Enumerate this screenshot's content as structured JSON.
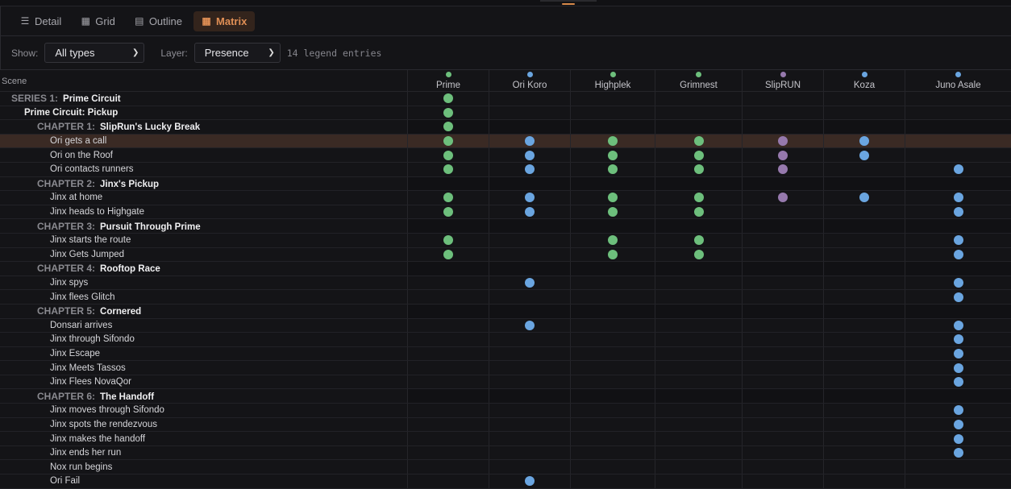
{
  "tabs": [
    {
      "label": "Detail",
      "icon": "list-icon"
    },
    {
      "label": "Grid",
      "icon": "grid-icon"
    },
    {
      "label": "Outline",
      "icon": "outline-icon"
    },
    {
      "label": "Matrix",
      "icon": "table-icon",
      "active": true
    }
  ],
  "filters": {
    "show_label": "Show:",
    "show_value": "All types",
    "layer_label": "Layer:",
    "layer_value": "Presence",
    "legend_count": "14 legend entries"
  },
  "colors": {
    "accent": "#e08f55",
    "green": "#6dbf7c",
    "blue": "#6aa5e0",
    "purple": "#9679ad",
    "highlight": "#3a2a24"
  },
  "matrix": {
    "scene_header": "Scene",
    "columns": [
      {
        "name": "Prime",
        "color": "green"
      },
      {
        "name": "Ori Koro",
        "color": "blue"
      },
      {
        "name": "Highplek",
        "color": "green"
      },
      {
        "name": "Grimnest",
        "color": "green"
      },
      {
        "name": "SlipRUN",
        "color": "purple"
      },
      {
        "name": "Koza",
        "color": "blue"
      },
      {
        "name": "Juno Asale",
        "color": "blue"
      }
    ],
    "rows": [
      {
        "type": "series",
        "prefix": "SERIES 1:",
        "title": "Prime Circuit",
        "presence": [
          1,
          0,
          0,
          0,
          0,
          0,
          0
        ]
      },
      {
        "type": "group",
        "title": "Prime Circuit: Pickup",
        "presence": [
          1,
          0,
          0,
          0,
          0,
          0,
          0
        ]
      },
      {
        "type": "chapter",
        "prefix": "CHAPTER 1:",
        "title": "SlipRun's Lucky Break",
        "presence": [
          1,
          0,
          0,
          0,
          0,
          0,
          0
        ]
      },
      {
        "type": "scene",
        "title": "Ori gets a call",
        "selected": true,
        "presence": [
          1,
          1,
          1,
          1,
          1,
          1,
          0
        ]
      },
      {
        "type": "scene",
        "title": "Ori on the Roof",
        "presence": [
          1,
          1,
          1,
          1,
          1,
          1,
          0
        ]
      },
      {
        "type": "scene",
        "title": "Ori contacts runners",
        "presence": [
          1,
          1,
          1,
          1,
          1,
          0,
          1
        ]
      },
      {
        "type": "chapter",
        "prefix": "CHAPTER 2:",
        "title": "Jinx's Pickup",
        "presence": [
          0,
          0,
          0,
          0,
          0,
          0,
          0
        ]
      },
      {
        "type": "scene",
        "title": "Jinx at home",
        "presence": [
          1,
          1,
          1,
          1,
          1,
          1,
          1
        ]
      },
      {
        "type": "scene",
        "title": "Jinx heads to Highgate",
        "presence": [
          1,
          1,
          1,
          1,
          0,
          0,
          1
        ]
      },
      {
        "type": "chapter",
        "prefix": "CHAPTER 3:",
        "title": "Pursuit Through Prime",
        "presence": [
          0,
          0,
          0,
          0,
          0,
          0,
          0
        ]
      },
      {
        "type": "scene",
        "title": "Jinx starts the route",
        "presence": [
          1,
          0,
          1,
          1,
          0,
          0,
          1
        ]
      },
      {
        "type": "scene",
        "title": "Jinx Gets Jumped",
        "presence": [
          1,
          0,
          1,
          1,
          0,
          0,
          1
        ]
      },
      {
        "type": "chapter",
        "prefix": "CHAPTER 4:",
        "title": "Rooftop Race",
        "presence": [
          0,
          0,
          0,
          0,
          0,
          0,
          0
        ]
      },
      {
        "type": "scene",
        "title": "Jinx spys",
        "presence": [
          0,
          1,
          0,
          0,
          0,
          0,
          1
        ]
      },
      {
        "type": "scene",
        "title": "Jinx flees Glitch",
        "presence": [
          0,
          0,
          0,
          0,
          0,
          0,
          1
        ]
      },
      {
        "type": "chapter",
        "prefix": "CHAPTER 5:",
        "title": "Cornered",
        "presence": [
          0,
          0,
          0,
          0,
          0,
          0,
          0
        ]
      },
      {
        "type": "scene",
        "title": "Donsari arrives",
        "presence": [
          0,
          1,
          0,
          0,
          0,
          0,
          1
        ]
      },
      {
        "type": "scene",
        "title": "Jinx through Sifondo",
        "presence": [
          0,
          0,
          0,
          0,
          0,
          0,
          1
        ]
      },
      {
        "type": "scene",
        "title": "Jinx Escape",
        "presence": [
          0,
          0,
          0,
          0,
          0,
          0,
          1
        ]
      },
      {
        "type": "scene",
        "title": "Jinx Meets Tassos",
        "presence": [
          0,
          0,
          0,
          0,
          0,
          0,
          1
        ]
      },
      {
        "type": "scene",
        "title": "Jinx Flees NovaQor",
        "presence": [
          0,
          0,
          0,
          0,
          0,
          0,
          1
        ]
      },
      {
        "type": "chapter",
        "prefix": "CHAPTER 6:",
        "title": "The Handoff",
        "presence": [
          0,
          0,
          0,
          0,
          0,
          0,
          0
        ]
      },
      {
        "type": "scene",
        "title": "Jinx moves through Sifondo",
        "presence": [
          0,
          0,
          0,
          0,
          0,
          0,
          1
        ]
      },
      {
        "type": "scene",
        "title": "Jinx spots the rendezvous",
        "presence": [
          0,
          0,
          0,
          0,
          0,
          0,
          1
        ]
      },
      {
        "type": "scene",
        "title": "Jinx makes the handoff",
        "presence": [
          0,
          0,
          0,
          0,
          0,
          0,
          1
        ]
      },
      {
        "type": "scene",
        "title": "Jinx ends her run",
        "presence": [
          0,
          0,
          0,
          0,
          0,
          0,
          1
        ]
      },
      {
        "type": "scene",
        "title": "Nox run begins",
        "presence": [
          0,
          0,
          0,
          0,
          0,
          0,
          0
        ]
      },
      {
        "type": "scene",
        "title": "Ori Fail",
        "presence": [
          0,
          1,
          0,
          0,
          0,
          0,
          0
        ]
      }
    ]
  }
}
